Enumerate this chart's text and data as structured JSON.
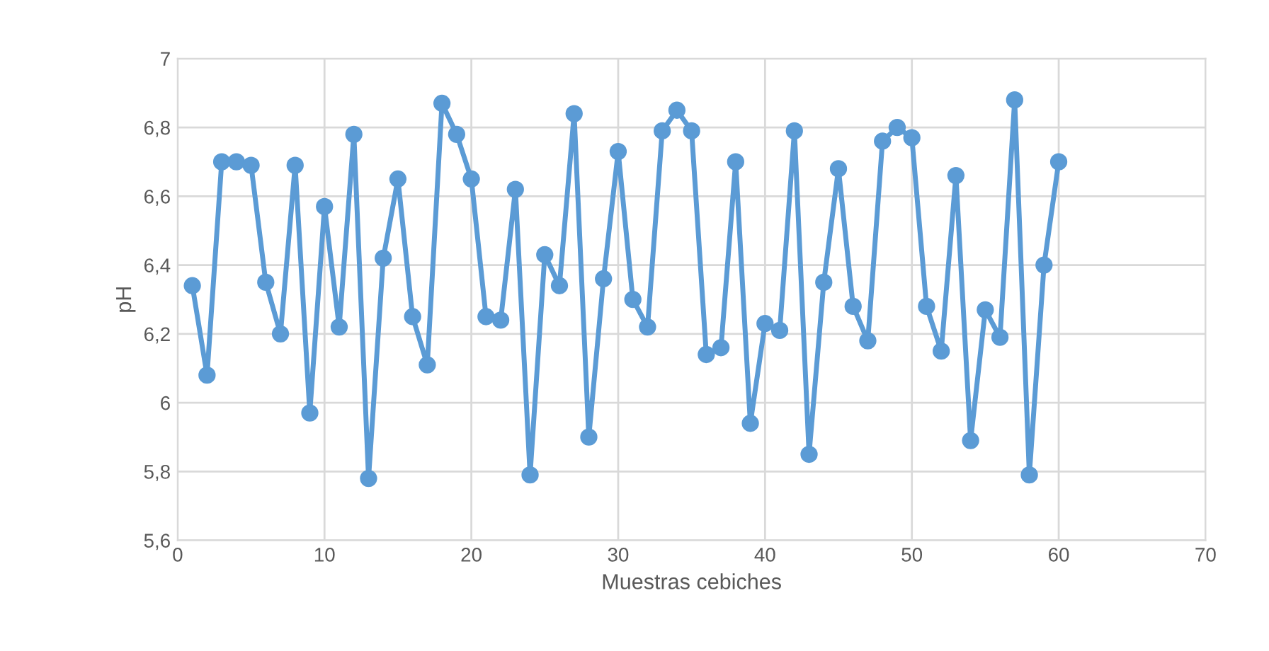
{
  "chart_data": {
    "type": "line",
    "xlabel": "Muestras cebiches",
    "ylabel": "pH",
    "x": [
      1,
      2,
      3,
      4,
      5,
      6,
      7,
      8,
      9,
      10,
      11,
      12,
      13,
      14,
      15,
      16,
      17,
      18,
      19,
      20,
      21,
      22,
      23,
      24,
      25,
      26,
      27,
      28,
      29,
      30,
      31,
      32,
      33,
      34,
      35,
      36,
      37,
      38,
      39,
      40,
      41,
      42,
      43,
      44,
      45,
      46,
      47,
      48,
      49,
      50,
      51,
      52,
      53,
      54,
      55,
      56,
      57,
      58,
      59,
      60
    ],
    "series": [
      {
        "color": "#5b9bd5",
        "values": [
          6.34,
          6.08,
          6.7,
          6.7,
          6.69,
          6.35,
          6.2,
          6.69,
          5.97,
          6.57,
          6.22,
          6.78,
          5.78,
          6.42,
          6.65,
          6.25,
          6.11,
          6.87,
          6.78,
          6.65,
          6.25,
          6.24,
          6.62,
          5.79,
          6.43,
          6.34,
          6.84,
          5.9,
          6.36,
          6.73,
          6.3,
          6.22,
          6.79,
          6.85,
          6.79,
          6.14,
          6.16,
          6.7,
          5.94,
          6.23,
          6.21,
          6.79,
          5.85,
          6.35,
          6.68,
          6.28,
          6.18,
          6.76,
          6.8,
          6.77,
          6.28,
          6.15,
          6.66,
          5.89,
          6.27,
          6.19,
          6.88,
          5.79,
          6.4,
          6.7
        ]
      }
    ],
    "xlim": [
      0,
      70
    ],
    "xticks": [
      0,
      10,
      20,
      30,
      40,
      50,
      60,
      70
    ],
    "ylim": [
      5.6,
      7
    ],
    "yticks": [
      {
        "value": 5.6,
        "label": "5,6"
      },
      {
        "value": 5.8,
        "label": "5,8"
      },
      {
        "value": 6,
        "label": "6"
      },
      {
        "value": 6.2,
        "label": "6,2"
      },
      {
        "value": 6.4,
        "label": "6,4"
      },
      {
        "value": 6.6,
        "label": "6,6"
      },
      {
        "value": 6.8,
        "label": "6,8"
      },
      {
        "value": 7,
        "label": "7"
      }
    ],
    "grid": true,
    "marker": "circle",
    "line_style": "solid"
  }
}
